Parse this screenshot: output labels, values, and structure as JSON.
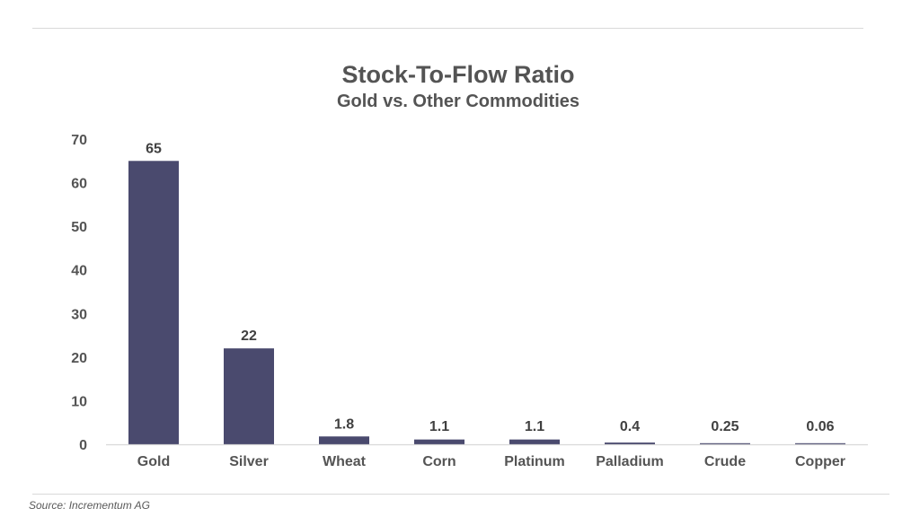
{
  "chart_data": {
    "type": "bar",
    "title": "Stock-To-Flow Ratio",
    "subtitle": "Gold vs. Other Commodities",
    "categories": [
      "Gold",
      "Silver",
      "Wheat",
      "Corn",
      "Platinum",
      "Palladium",
      "Crude",
      "Copper"
    ],
    "values": [
      65,
      22,
      1.8,
      1.1,
      1.1,
      0.4,
      0.25,
      0.06
    ],
    "data_labels": [
      "65",
      "22",
      "1.8",
      "1.1",
      "1.1",
      "0.4",
      "0.25",
      "0.06"
    ],
    "yticks": [
      "0",
      "10",
      "20",
      "30",
      "40",
      "50",
      "60",
      "70"
    ],
    "ylim": [
      0,
      70
    ],
    "xlabel": "",
    "ylabel": "",
    "grid": false,
    "legend": "none",
    "colors": {
      "bar": "#4a4a6e",
      "axis": "#d9d9d9"
    }
  },
  "source": "Source: Incrementum AG"
}
